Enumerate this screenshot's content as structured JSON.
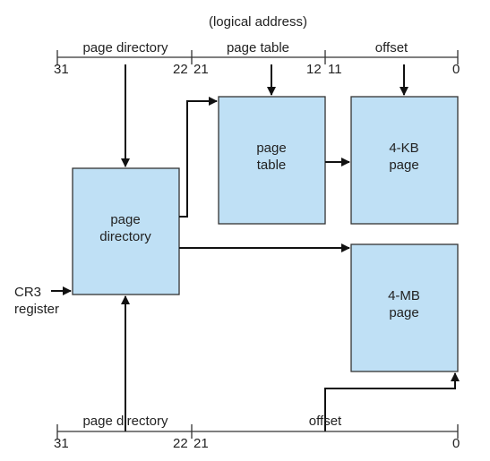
{
  "colors": {
    "box_fill": "#bfe0f5",
    "box_stroke": "#333333",
    "arrow": "#111111"
  },
  "top_address": {
    "caption": "(logical address)",
    "fields": {
      "directory": "page directory",
      "table": "page table",
      "offset": "offset"
    },
    "bits": {
      "b31": "31",
      "b22": "22",
      "b21": "21",
      "b12": "12",
      "b11": "11",
      "b0": "0"
    }
  },
  "bottom_address": {
    "fields": {
      "directory": "page directory",
      "offset": "offset"
    },
    "bits": {
      "b31": "31",
      "b22": "22",
      "b21": "21",
      "b0": "0"
    }
  },
  "boxes": {
    "page_directory": {
      "line1": "page",
      "line2": "directory"
    },
    "page_table": {
      "line1": "page",
      "line2": "table"
    },
    "page_4kb": {
      "line1": "4-KB",
      "line2": "page"
    },
    "page_4mb": {
      "line1": "4-MB",
      "line2": "page"
    }
  },
  "cr3": {
    "line1": "CR3",
    "line2": "register"
  }
}
